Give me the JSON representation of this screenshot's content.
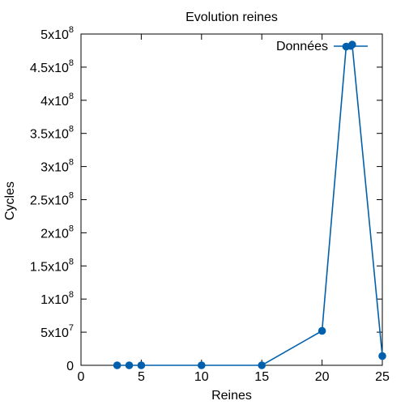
{
  "chart_data": {
    "type": "line",
    "title": "Evolution reines",
    "xlabel": "Reines",
    "ylabel": "Cycles",
    "xlim": [
      0,
      25
    ],
    "ylim": [
      0,
      500000000
    ],
    "x_ticks": [
      0,
      5,
      10,
      15,
      20,
      25
    ],
    "x_tick_labels": [
      "0",
      "5",
      "10",
      "15",
      "20",
      "25"
    ],
    "y_ticks": [
      0,
      50000000,
      100000000,
      150000000,
      200000000,
      250000000,
      300000000,
      350000000,
      400000000,
      450000000,
      500000000
    ],
    "y_tick_labels": [
      {
        "base": "0",
        "exp": ""
      },
      {
        "base": "5x10",
        "exp": "7"
      },
      {
        "base": "1x10",
        "exp": "8"
      },
      {
        "base": "1.5x10",
        "exp": "8"
      },
      {
        "base": "2x10",
        "exp": "8"
      },
      {
        "base": "2.5x10",
        "exp": "8"
      },
      {
        "base": "3x10",
        "exp": "8"
      },
      {
        "base": "3.5x10",
        "exp": "8"
      },
      {
        "base": "4x10",
        "exp": "8"
      },
      {
        "base": "4.5x10",
        "exp": "8"
      },
      {
        "base": "5x10",
        "exp": "8"
      }
    ],
    "grid": false,
    "legend_position": "top-right",
    "series": [
      {
        "name": "Données",
        "color": "#0060ad",
        "x": [
          3,
          4,
          5,
          10,
          15,
          20,
          22,
          22.5,
          25
        ],
        "y": [
          0,
          0,
          0,
          0,
          0,
          52000000,
          481000000,
          484000000,
          14000000
        ]
      }
    ]
  }
}
